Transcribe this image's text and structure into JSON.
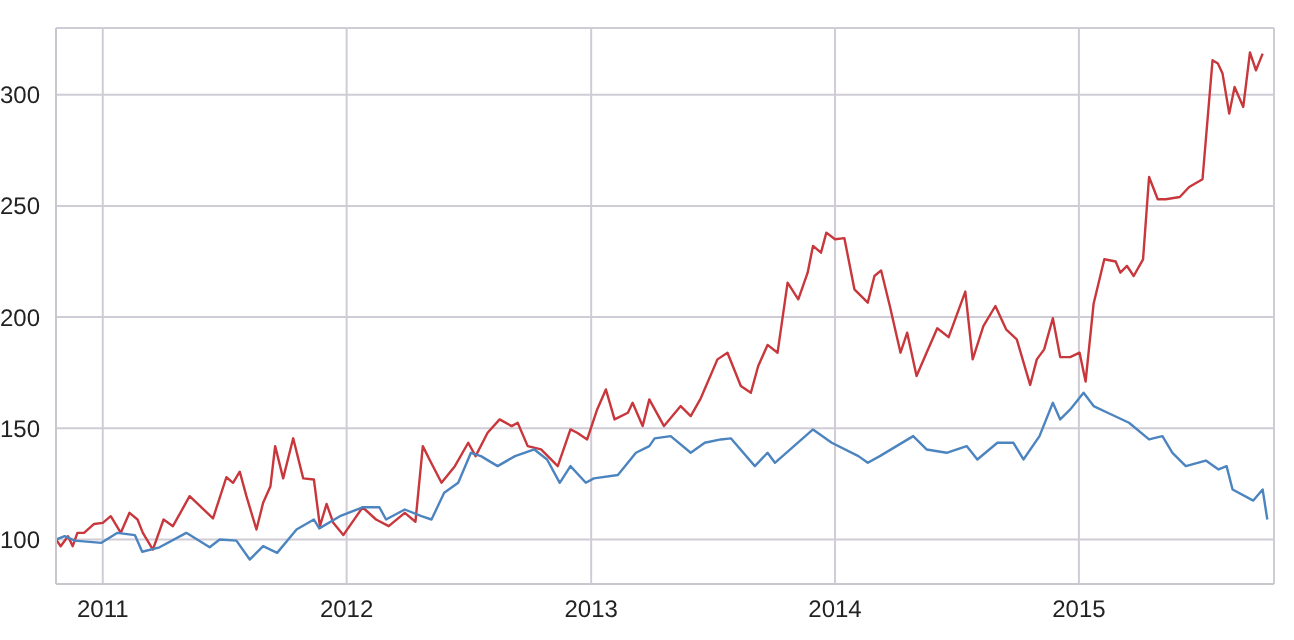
{
  "chart_data": {
    "type": "line",
    "xlim": [
      "2010-10-23",
      "2015-10-20"
    ],
    "xticks": [
      "2011",
      "2012",
      "2013",
      "2014",
      "2015"
    ],
    "ylim": [
      80,
      330
    ],
    "yticks": [
      100,
      150,
      200,
      250,
      300
    ],
    "grid": true,
    "legend": false,
    "marker": "none",
    "line_style": "solid",
    "series": [
      {
        "color": "#c8373c",
        "x": [
          "2010-10-23",
          "2010-10-30",
          "2010-11-10",
          "2010-11-17",
          "2010-11-24",
          "2010-12-04",
          "2010-12-19",
          "2011-01-01",
          "2011-01-13",
          "2011-01-28",
          "2011-02-10",
          "2011-02-22",
          "2011-03-02",
          "2011-03-17",
          "2011-04-02",
          "2011-04-16",
          "2011-05-11",
          "2011-06-15",
          "2011-07-05",
          "2011-07-15",
          "2011-07-25",
          "2011-08-04",
          "2011-08-19",
          "2011-08-29",
          "2011-09-09",
          "2011-09-16",
          "2011-09-28",
          "2011-10-13",
          "2011-10-28",
          "2011-11-13",
          "2011-11-22",
          "2011-12-02",
          "2011-12-12",
          "2011-12-27",
          "2012-01-25",
          "2012-02-14",
          "2012-03-04",
          "2012-03-28",
          "2012-04-13",
          "2012-04-24",
          "2012-05-04",
          "2012-05-22",
          "2012-06-11",
          "2012-07-01",
          "2012-07-12",
          "2012-07-30",
          "2012-08-17",
          "2012-09-04",
          "2012-09-13",
          "2012-09-28",
          "2012-10-18",
          "2012-11-12",
          "2012-12-01",
          "2012-12-11",
          "2012-12-26",
          "2013-01-10",
          "2013-01-23",
          "2013-02-05",
          "2013-02-25",
          "2013-03-04",
          "2013-03-19",
          "2013-03-29",
          "2013-04-20",
          "2013-05-15",
          "2013-05-30",
          "2013-06-14",
          "2013-07-09",
          "2013-07-24",
          "2013-08-13",
          "2013-08-28",
          "2013-09-08",
          "2013-09-22",
          "2013-10-07",
          "2013-10-22",
          "2013-11-07",
          "2013-11-21",
          "2013-11-29",
          "2013-12-11",
          "2013-12-19",
          "2014-01-01",
          "2014-01-15",
          "2014-01-30",
          "2014-02-19",
          "2014-03-01",
          "2014-03-11",
          "2014-03-24",
          "2014-04-09",
          "2014-04-19",
          "2014-05-03",
          "2014-05-18",
          "2014-06-03",
          "2014-06-20",
          "2014-07-15",
          "2014-07-26",
          "2014-08-11",
          "2014-08-29",
          "2014-09-14",
          "2014-09-30",
          "2014-10-20",
          "2014-10-30",
          "2014-11-10",
          "2014-11-23",
          "2014-12-04",
          "2014-12-19",
          "2015-01-02",
          "2015-01-11",
          "2015-01-23",
          "2015-02-08",
          "2015-02-25",
          "2015-03-04",
          "2015-03-14",
          "2015-03-24",
          "2015-04-07",
          "2015-04-16",
          "2015-04-29",
          "2015-05-11",
          "2015-06-01",
          "2015-06-15",
          "2015-07-05",
          "2015-07-20",
          "2015-07-28",
          "2015-08-04",
          "2015-08-14",
          "2015-08-22",
          "2015-09-04",
          "2015-09-14",
          "2015-09-23",
          "2015-10-03"
        ],
        "values": [
          100,
          97,
          101.5,
          97,
          103,
          103,
          107,
          107.5,
          110.5,
          103,
          112,
          109,
          103,
          95.5,
          109,
          106,
          119.5,
          109.5,
          128,
          125.5,
          130.5,
          119.5,
          104.5,
          116.5,
          124,
          142,
          127.5,
          145.5,
          127.5,
          127,
          106,
          116,
          107.5,
          102,
          114.5,
          109,
          106,
          112,
          108,
          142,
          136,
          125.5,
          133,
          143.5,
          137.5,
          148,
          154,
          151,
          152.5,
          142,
          140.5,
          133,
          149.5,
          148,
          145,
          158.5,
          167.5,
          154,
          157,
          161.5,
          151,
          163,
          151,
          160,
          155.5,
          163.5,
          181,
          184,
          169,
          166,
          178,
          187.5,
          184,
          215.5,
          208,
          220,
          232,
          229,
          238,
          235,
          235.5,
          212.5,
          206.5,
          218.5,
          221,
          205,
          184,
          193,
          173.5,
          184,
          195,
          191,
          211.5,
          181,
          196,
          205,
          194.5,
          190,
          169.5,
          181,
          185.5,
          199.5,
          182,
          182,
          184,
          171,
          206,
          226,
          225,
          220,
          223,
          218.5,
          226,
          263,
          253,
          253,
          254,
          258.5,
          262,
          315.5,
          314,
          309.5,
          291.5,
          303.5,
          294.5,
          319,
          311,
          318.5
        ]
      },
      {
        "color": "#4c84c0",
        "x": [
          "2010-10-23",
          "2010-11-05",
          "2010-11-20",
          "2010-12-30",
          "2011-01-23",
          "2011-02-18",
          "2011-03-01",
          "2011-03-27",
          "2011-05-06",
          "2011-06-10",
          "2011-06-25",
          "2011-07-20",
          "2011-08-09",
          "2011-08-29",
          "2011-09-19",
          "2011-10-18",
          "2011-11-13",
          "2011-11-21",
          "2011-12-22",
          "2012-01-25",
          "2012-02-19",
          "2012-02-29",
          "2012-03-28",
          "2012-04-22",
          "2012-05-07",
          "2012-05-26",
          "2012-06-16",
          "2012-07-05",
          "2012-07-20",
          "2012-08-14",
          "2012-09-09",
          "2012-10-08",
          "2012-10-27",
          "2012-11-15",
          "2012-12-01",
          "2012-12-24",
          "2013-01-05",
          "2013-02-10",
          "2013-03-09",
          "2013-03-29",
          "2013-04-06",
          "2013-04-30",
          "2013-05-30",
          "2013-06-20",
          "2013-07-14",
          "2013-07-29",
          "2013-09-03",
          "2013-09-22",
          "2013-10-03",
          "2013-11-29",
          "2013-12-27",
          "2014-02-05",
          "2014-02-19",
          "2014-03-09",
          "2014-04-28",
          "2014-05-18",
          "2014-06-17",
          "2014-07-17",
          "2014-08-02",
          "2014-09-01",
          "2014-09-25",
          "2014-10-10",
          "2014-11-03",
          "2014-11-23",
          "2014-12-04",
          "2014-12-19",
          "2015-01-08",
          "2015-01-23",
          "2015-02-13",
          "2015-03-17",
          "2015-04-16",
          "2015-05-06",
          "2015-05-21",
          "2015-06-10",
          "2015-07-10",
          "2015-07-29",
          "2015-08-10",
          "2015-08-19",
          "2015-09-19",
          "2015-10-03",
          "2015-10-10"
        ],
        "values": [
          100,
          101.5,
          99.5,
          98.5,
          103,
          102,
          94.5,
          96.5,
          103,
          96.5,
          100,
          99.5,
          91,
          97,
          94,
          104.5,
          109,
          105,
          110.5,
          114.5,
          114.5,
          109,
          113.5,
          110.5,
          109,
          121,
          125.5,
          139,
          137.5,
          133,
          137.5,
          140.5,
          136,
          125.5,
          133,
          125.5,
          127.5,
          129,
          139,
          142,
          145.5,
          146.5,
          139,
          143.5,
          145,
          145.5,
          133,
          139,
          134.5,
          149.5,
          143.5,
          137.5,
          134.5,
          137.5,
          146.5,
          140.5,
          139,
          142,
          136,
          143.5,
          143.5,
          136,
          146.5,
          161.5,
          154,
          158.5,
          166,
          160,
          157,
          152.5,
          145,
          146.5,
          139,
          133,
          135.5,
          131.5,
          133,
          122.5,
          117.5,
          122.5,
          109
        ]
      }
    ]
  }
}
